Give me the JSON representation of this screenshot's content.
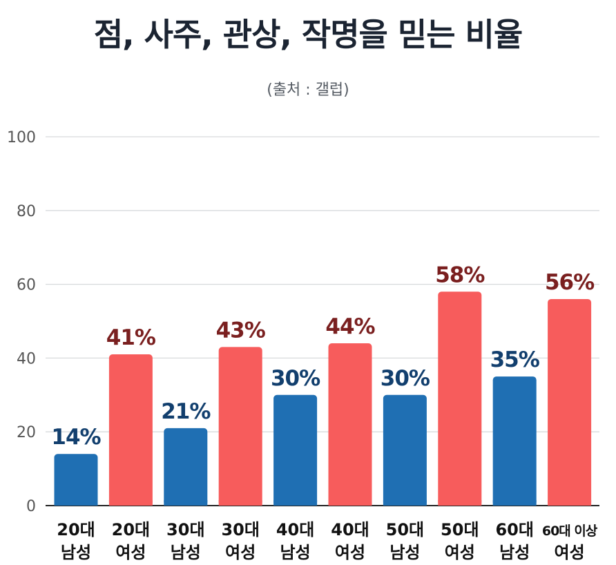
{
  "title": "점, 사주, 관상, 작명을 믿는 비율",
  "subtitle": "(출처 : 갤럽)",
  "colors": {
    "male": "#1f6fb3",
    "female": "#f75c5c",
    "male_label": "#123f6e",
    "female_label": "#7a1f1f",
    "grid": "#d7d9dc",
    "axis": "#222222",
    "tick": "#555555"
  },
  "chart_data": {
    "type": "bar",
    "title": "점, 사주, 관상, 작명을 믿는 비율",
    "subtitle": "(출처 : 갤럽)",
    "ylim": [
      0,
      100
    ],
    "yticks": [
      "0",
      "20",
      "40",
      "60",
      "80",
      "100"
    ],
    "grid": true,
    "categories": [
      [
        "20대",
        "남성"
      ],
      [
        "20대",
        "여성"
      ],
      [
        "30대",
        "남성"
      ],
      [
        "30대",
        "여성"
      ],
      [
        "40대",
        "남성"
      ],
      [
        "40대",
        "여성"
      ],
      [
        "50대",
        "남성"
      ],
      [
        "50대",
        "여성"
      ],
      [
        "60대",
        "남성"
      ],
      [
        "60대 이상",
        "여성"
      ]
    ],
    "values": [
      14,
      41,
      21,
      43,
      30,
      44,
      30,
      58,
      35,
      56
    ],
    "labels": [
      "14%",
      "41%",
      "21%",
      "43%",
      "30%",
      "44%",
      "30%",
      "58%",
      "35%",
      "56%"
    ],
    "groups": [
      "male",
      "female",
      "male",
      "female",
      "male",
      "female",
      "male",
      "female",
      "male",
      "female"
    ]
  }
}
